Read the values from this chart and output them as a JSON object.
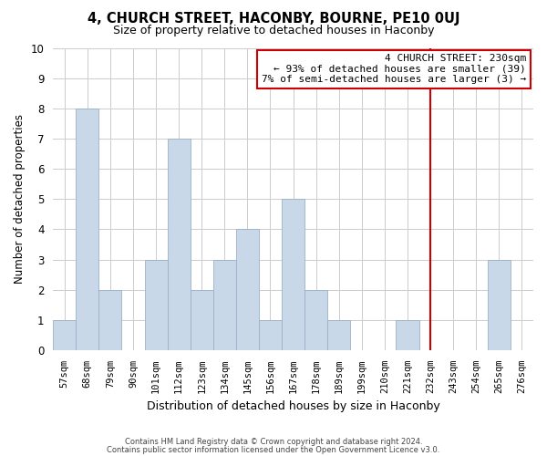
{
  "title": "4, CHURCH STREET, HACONBY, BOURNE, PE10 0UJ",
  "subtitle": "Size of property relative to detached houses in Haconby",
  "xlabel": "Distribution of detached houses by size in Haconby",
  "ylabel": "Number of detached properties",
  "bin_labels": [
    "57sqm",
    "68sqm",
    "79sqm",
    "90sqm",
    "101sqm",
    "112sqm",
    "123sqm",
    "134sqm",
    "145sqm",
    "156sqm",
    "167sqm",
    "178sqm",
    "189sqm",
    "199sqm",
    "210sqm",
    "221sqm",
    "232sqm",
    "243sqm",
    "254sqm",
    "265sqm",
    "276sqm"
  ],
  "bar_heights": [
    1,
    8,
    2,
    0,
    3,
    7,
    2,
    3,
    4,
    1,
    5,
    2,
    1,
    0,
    0,
    1,
    0,
    0,
    0,
    3,
    0
  ],
  "bar_color": "#c8d8e8",
  "bar_edge_color": "#9ab0c8",
  "vline_x": 16,
  "vline_color": "#cc0000",
  "annotation_title": "4 CHURCH STREET: 230sqm",
  "annotation_line1": "← 93% of detached houses are smaller (39)",
  "annotation_line2": "7% of semi-detached houses are larger (3) →",
  "annotation_box_color": "#ffffff",
  "annotation_box_edge": "#cc0000",
  "ylim": [
    0,
    10
  ],
  "yticks": [
    0,
    1,
    2,
    3,
    4,
    5,
    6,
    7,
    8,
    9,
    10
  ],
  "footer1": "Contains HM Land Registry data © Crown copyright and database right 2024.",
  "footer2": "Contains public sector information licensed under the Open Government Licence v3.0."
}
